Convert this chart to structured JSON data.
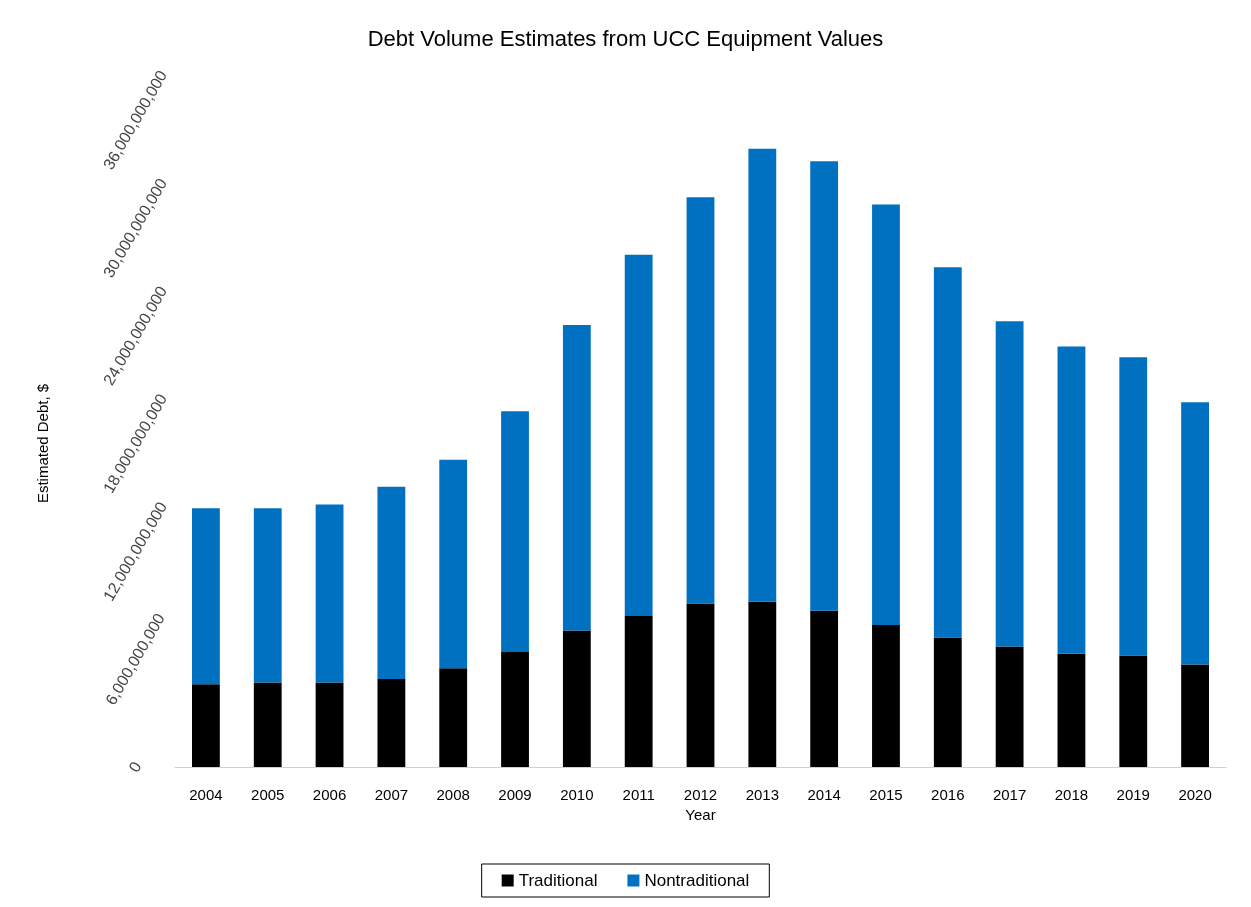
{
  "chart_data": {
    "type": "bar",
    "stacked": true,
    "title": "Debt Volume Estimates from UCC Equipment Values",
    "xlabel": "Year",
    "ylabel": "Estimated Debt, $",
    "categories": [
      "2004",
      "2005",
      "2006",
      "2007",
      "2008",
      "2009",
      "2010",
      "2011",
      "2012",
      "2013",
      "2014",
      "2015",
      "2016",
      "2017",
      "2018",
      "2019",
      "2020"
    ],
    "series": [
      {
        "name": "Traditional",
        "color": "#000000",
        "values": [
          4600000000,
          4700000000,
          4700000000,
          4900000000,
          5500000000,
          6400000000,
          7600000000,
          8400000000,
          9100000000,
          9200000000,
          8700000000,
          7900000000,
          7200000000,
          6700000000,
          6300000000,
          6200000000,
          5700000000
        ]
      },
      {
        "name": "Nontraditional",
        "color": "#0070c0",
        "values": [
          9800000000,
          9700000000,
          9900000000,
          10700000000,
          11600000000,
          13400000000,
          17000000000,
          20100000000,
          22600000000,
          25200000000,
          25000000000,
          23400000000,
          20600000000,
          18100000000,
          17100000000,
          16600000000,
          14600000000
        ]
      }
    ],
    "ylim": [
      0,
      36000000000
    ],
    "yticks": [
      0,
      {
        "value": 6000000000,
        "label": "6,000,000,000"
      },
      {
        "value": 12000000000,
        "label": "12,000,000,000"
      },
      {
        "value": 18000000000,
        "label": "18,000,000,000"
      },
      {
        "value": 24000000000,
        "label": "24,000,000,000"
      },
      {
        "value": 30000000000,
        "label": "30,000,000,000"
      },
      {
        "value": 36000000000,
        "label": "36,000,000,000"
      }
    ],
    "grid": false,
    "legend": "bottom"
  }
}
